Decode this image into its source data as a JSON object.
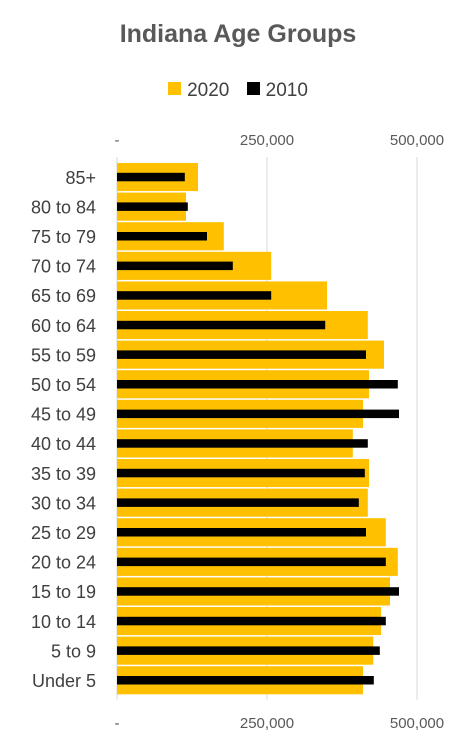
{
  "chart_data": {
    "type": "bar",
    "orientation": "horizontal",
    "title": "Indiana Age Groups",
    "categories": [
      "85+",
      "80 to 84",
      "75 to 79",
      "70 to 74",
      "65 to 69",
      "60 to 64",
      "55 to 59",
      "50 to 54",
      "45 to 49",
      "40 to 44",
      "35 to 39",
      "30 to 34",
      "25 to 29",
      "20 to 24",
      "15 to 19",
      "10 to 14",
      "5 to 9",
      "Under 5"
    ],
    "series": [
      {
        "name": "2020",
        "color": "#FFC000",
        "values": [
          135000,
          115000,
          178000,
          257000,
          350000,
          418000,
          445000,
          420000,
          410000,
          393000,
          420000,
          418000,
          448000,
          468000,
          455000,
          440000,
          427000,
          410000
        ]
      },
      {
        "name": "2010",
        "color": "#000000",
        "values": [
          113000,
          118000,
          150000,
          193000,
          257000,
          347000,
          415000,
          468000,
          470000,
          418000,
          413000,
          403000,
          415000,
          448000,
          470000,
          448000,
          438000,
          428000
        ]
      }
    ],
    "xlim": [
      0,
      500000
    ],
    "xticks": [
      "-",
      "250,000",
      "500,000"
    ],
    "grid": true,
    "legend_position": "top"
  }
}
